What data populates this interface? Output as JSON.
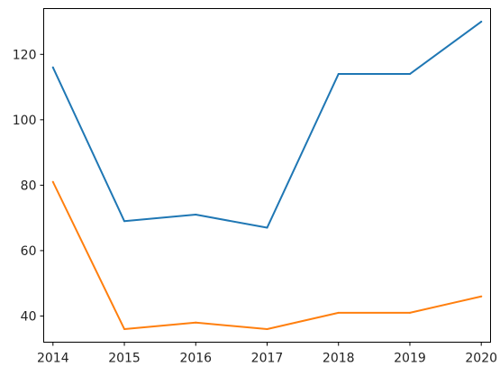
{
  "chart_data": {
    "type": "line",
    "title": "",
    "xlabel": "",
    "ylabel": "",
    "x": [
      2014,
      2015,
      2016,
      2017,
      2018,
      2019,
      2020
    ],
    "xlim": [
      2013.87,
      2020.13
    ],
    "ylim": [
      32,
      134
    ],
    "yticks": [
      40,
      60,
      80,
      100,
      120
    ],
    "grid": false,
    "series": [
      {
        "color": "#1f77b4",
        "values": [
          116,
          69,
          71,
          67,
          114,
          114,
          130
        ]
      },
      {
        "color": "#ff7f0e",
        "values": [
          81,
          36,
          38,
          36,
          41,
          41,
          46
        ]
      }
    ]
  }
}
